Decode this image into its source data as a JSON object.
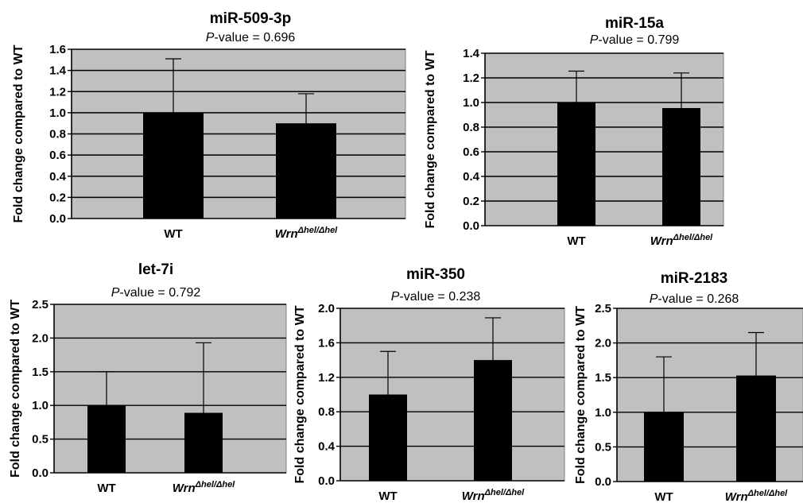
{
  "chart_data": [
    {
      "type": "bar",
      "title": "miR-509-3p",
      "subtitle": {
        "p_label": "P",
        "rest": "-value = 0.696"
      },
      "ylabel": "Fold change compared to WT",
      "categories": [
        {
          "base": "WT",
          "sup": ""
        },
        {
          "base": "Wrn",
          "sup": "Δhel/Δhel"
        }
      ],
      "values": [
        1.0,
        0.9
      ],
      "errors": [
        0.51,
        0.28
      ],
      "ylim": [
        0,
        1.6
      ],
      "yticks": [
        "0.0",
        "0.2",
        "0.4",
        "0.6",
        "0.8",
        "1.0",
        "1.2",
        "1.4",
        "1.6"
      ],
      "grid": true,
      "colors": {
        "bar": "#000000",
        "plot_bg": "#c0c0c0"
      }
    },
    {
      "type": "bar",
      "title": "miR-15a",
      "subtitle": {
        "p_label": "P",
        "rest": "-value = 0.799"
      },
      "ylabel": "Fold change compared to WT",
      "categories": [
        {
          "base": "WT",
          "sup": ""
        },
        {
          "base": "Wrn",
          "sup": "Δhel/Δhel"
        }
      ],
      "values": [
        1.0,
        0.955
      ],
      "errors": [
        0.255,
        0.285
      ],
      "ylim": [
        0,
        1.4
      ],
      "yticks": [
        "0.0",
        "0.2",
        "0.4",
        "0.6",
        "0.8",
        "1.0",
        "1.2",
        "1.4"
      ],
      "grid": true,
      "colors": {
        "bar": "#000000",
        "plot_bg": "#c0c0c0"
      }
    },
    {
      "type": "bar",
      "title": "let-7i",
      "subtitle": {
        "p_label": "P",
        "rest": "-value = 0.792"
      },
      "ylabel": "Fold change compared to WT",
      "categories": [
        {
          "base": "WT",
          "sup": ""
        },
        {
          "base": "Wrn",
          "sup": "Δhel/Δhel"
        }
      ],
      "values": [
        1.0,
        0.89
      ],
      "errors": [
        0.5,
        1.04
      ],
      "ylim": [
        0,
        2.5
      ],
      "yticks": [
        "0.0",
        "0.5",
        "1.0",
        "1.5",
        "2.0",
        "2.5"
      ],
      "grid": true,
      "colors": {
        "bar": "#000000",
        "plot_bg": "#c0c0c0"
      }
    },
    {
      "type": "bar",
      "title": "miR-350",
      "subtitle": {
        "p_label": "P",
        "rest": "-value = 0.238"
      },
      "ylabel": "Fold change compared to WT",
      "categories": [
        {
          "base": "WT",
          "sup": ""
        },
        {
          "base": "Wrn",
          "sup": "Δhel/Δhel"
        }
      ],
      "values": [
        1.0,
        1.4
      ],
      "errors": [
        0.5,
        0.49
      ],
      "ylim": [
        0,
        2.0
      ],
      "yticks": [
        "0.0",
        "0.4",
        "0.8",
        "1.2",
        "1.6",
        "2.0"
      ],
      "grid": true,
      "colors": {
        "bar": "#000000",
        "plot_bg": "#c0c0c0"
      }
    },
    {
      "type": "bar",
      "title": "miR-2183",
      "subtitle": {
        "p_label": "P",
        "rest": "-value = 0.268"
      },
      "ylabel": "Fold change compared to WT",
      "categories": [
        {
          "base": "WT",
          "sup": ""
        },
        {
          "base": "Wrn",
          "sup": "Δhel/Δhel"
        }
      ],
      "values": [
        1.0,
        1.53
      ],
      "errors": [
        0.8,
        0.62
      ],
      "ylim": [
        0,
        2.5
      ],
      "yticks": [
        "0.0",
        "0.5",
        "1.0",
        "1.5",
        "2.0",
        "2.5"
      ],
      "grid": true,
      "colors": {
        "bar": "#000000",
        "plot_bg": "#c0c0c0"
      }
    }
  ]
}
